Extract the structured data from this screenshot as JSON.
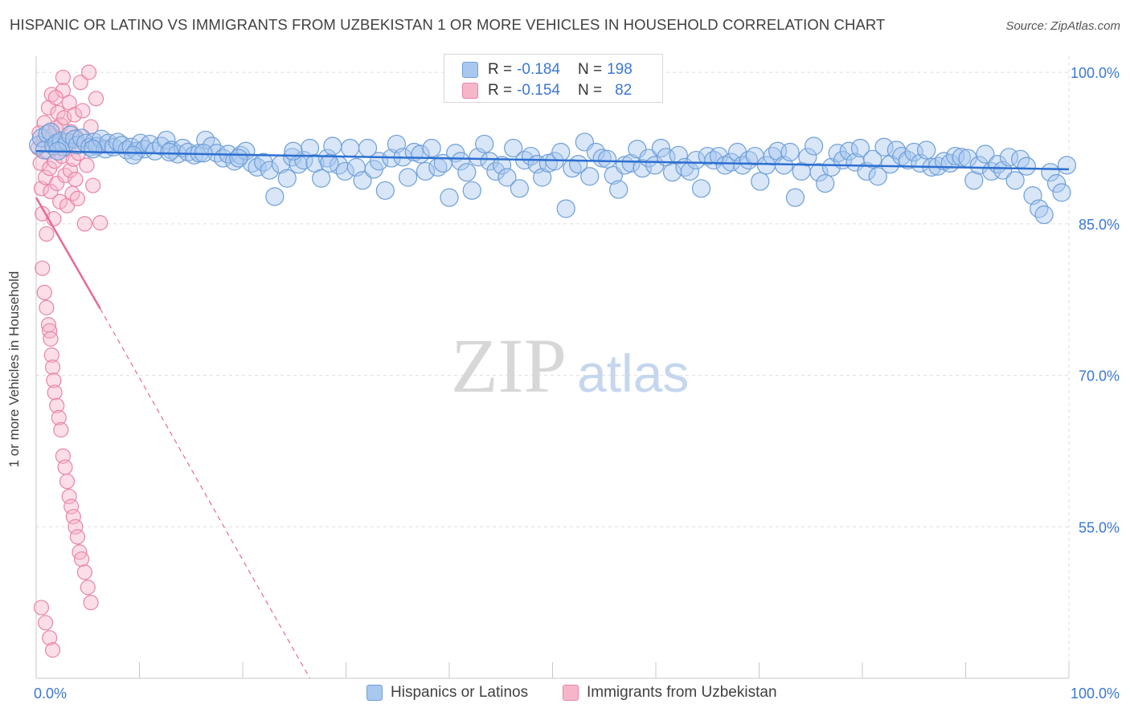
{
  "title": "HISPANIC OR LATINO VS IMMIGRANTS FROM UZBEKISTAN 1 OR MORE VEHICLES IN HOUSEHOLD CORRELATION CHART",
  "source": "Source: ZipAtlas.com",
  "watermark": {
    "zip": "ZIP",
    "atlas": "atlas"
  },
  "colors": {
    "blue_fill": "#a9c8f0",
    "blue_stroke": "#6e9fd8",
    "blue_line": "#2c6fd1",
    "pink_fill": "#f6b6ca",
    "pink_stroke": "#e984a6",
    "pink_line": "#e8689a",
    "axis_text": "#3a77d6",
    "grid": "#dedede"
  },
  "stats": {
    "blue": {
      "r_label": "R =",
      "r_value": "-0.184",
      "n_label": "N =",
      "n_value": "198"
    },
    "pink": {
      "r_label": "R =",
      "r_value": "-0.154",
      "n_label": "N =",
      "n_value": "82"
    }
  },
  "legend": {
    "blue_label": "Hispanics or Latinos",
    "pink_label": "Immigrants from Uzbekistan"
  },
  "chart_data": {
    "type": "scatter",
    "ylabel": "1 or more Vehicles in Household",
    "xlabel": "",
    "xlim": [
      0,
      100
    ],
    "ylim": [
      40,
      101.6
    ],
    "x_tick_labels": [
      {
        "value": 0,
        "label": "0.0%"
      },
      {
        "value": 100,
        "label": "100.0%"
      }
    ],
    "y_tick_labels": [
      {
        "value": 100,
        "label": "100.0%"
      },
      {
        "value": 85,
        "label": "85.0%"
      },
      {
        "value": 70,
        "label": "70.0%"
      },
      {
        "value": 55,
        "label": "55.0%"
      }
    ],
    "series": [
      {
        "name": "Hispanics or Latinos",
        "color": "blue",
        "trend": {
          "x": [
            0,
            100
          ],
          "y": [
            92.2,
            90.4
          ],
          "dashed_to": null
        },
        "points": [
          [
            0.2,
            92.8
          ],
          [
            0.5,
            93.5
          ],
          [
            0.8,
            92.3
          ],
          [
            1.1,
            93.9
          ],
          [
            1.4,
            94.1
          ],
          [
            1.7,
            92.7
          ],
          [
            2.0,
            93.0
          ],
          [
            2.4,
            93.2
          ],
          [
            2.7,
            92.6
          ],
          [
            3.0,
            93.1
          ],
          [
            3.3,
            93.8
          ],
          [
            3.7,
            93.4
          ],
          [
            4.0,
            92.8
          ],
          [
            4.4,
            93.5
          ],
          [
            4.8,
            93.0
          ],
          [
            5.2,
            92.6
          ],
          [
            5.6,
            93.1
          ],
          [
            5.9,
            92.7
          ],
          [
            6.3,
            93.4
          ],
          [
            6.7,
            92.4
          ],
          [
            7.0,
            93.0
          ],
          [
            7.5,
            92.6
          ],
          [
            7.9,
            93.1
          ],
          [
            8.3,
            92.8
          ],
          [
            8.8,
            92.3
          ],
          [
            9.2,
            92.6
          ],
          [
            9.7,
            92.2
          ],
          [
            10.1,
            93.0
          ],
          [
            10.5,
            92.4
          ],
          [
            11.0,
            92.9
          ],
          [
            11.5,
            92.2
          ],
          [
            12.1,
            92.7
          ],
          [
            12.6,
            93.3
          ],
          [
            13.1,
            92.3
          ],
          [
            13.7,
            91.9
          ],
          [
            14.2,
            92.5
          ],
          [
            14.7,
            92.1
          ],
          [
            15.3,
            91.8
          ],
          [
            15.8,
            92.0
          ],
          [
            16.4,
            93.3
          ],
          [
            17.0,
            92.7
          ],
          [
            17.5,
            92.0
          ],
          [
            18.1,
            91.5
          ],
          [
            18.6,
            91.9
          ],
          [
            19.2,
            91.2
          ],
          [
            19.8,
            91.8
          ],
          [
            20.3,
            92.2
          ],
          [
            20.9,
            91.0
          ],
          [
            21.4,
            90.6
          ],
          [
            22.0,
            91.1
          ],
          [
            22.6,
            90.3
          ],
          [
            23.1,
            87.7
          ],
          [
            23.7,
            90.9
          ],
          [
            24.3,
            89.5
          ],
          [
            24.8,
            91.6
          ],
          [
            25.4,
            90.9
          ],
          [
            25.9,
            91.3
          ],
          [
            26.5,
            92.5
          ],
          [
            27.0,
            91.0
          ],
          [
            27.6,
            89.5
          ],
          [
            28.2,
            91.5
          ],
          [
            28.7,
            92.7
          ],
          [
            29.3,
            90.8
          ],
          [
            29.9,
            90.2
          ],
          [
            30.4,
            92.5
          ],
          [
            31.0,
            90.6
          ],
          [
            31.6,
            89.3
          ],
          [
            32.1,
            92.5
          ],
          [
            32.7,
            90.4
          ],
          [
            33.2,
            91.2
          ],
          [
            33.8,
            88.3
          ],
          [
            34.4,
            91.5
          ],
          [
            34.9,
            92.9
          ],
          [
            35.5,
            91.6
          ],
          [
            36.0,
            89.6
          ],
          [
            36.6,
            92.1
          ],
          [
            37.2,
            91.9
          ],
          [
            37.7,
            90.2
          ],
          [
            38.3,
            92.5
          ],
          [
            38.9,
            90.6
          ],
          [
            39.4,
            91.0
          ],
          [
            40.0,
            87.6
          ],
          [
            40.6,
            92.0
          ],
          [
            41.1,
            91.2
          ],
          [
            41.7,
            90.1
          ],
          [
            42.2,
            88.3
          ],
          [
            42.8,
            91.6
          ],
          [
            43.4,
            92.9
          ],
          [
            43.9,
            91.2
          ],
          [
            44.5,
            90.2
          ],
          [
            45.1,
            90.8
          ],
          [
            45.6,
            89.6
          ],
          [
            46.2,
            92.5
          ],
          [
            46.8,
            88.5
          ],
          [
            47.3,
            91.3
          ],
          [
            47.9,
            91.7
          ],
          [
            48.5,
            90.9
          ],
          [
            49.0,
            89.6
          ],
          [
            49.6,
            91.0
          ],
          [
            50.2,
            91.2
          ],
          [
            50.8,
            92.1
          ],
          [
            51.3,
            86.5
          ],
          [
            51.9,
            90.5
          ],
          [
            52.5,
            90.9
          ],
          [
            53.1,
            93.1
          ],
          [
            53.6,
            89.7
          ],
          [
            54.2,
            92.1
          ],
          [
            54.8,
            91.5
          ],
          [
            55.3,
            91.4
          ],
          [
            55.9,
            89.8
          ],
          [
            56.4,
            88.4
          ],
          [
            57.0,
            90.8
          ],
          [
            57.6,
            91.0
          ],
          [
            58.2,
            92.4
          ],
          [
            58.7,
            90.5
          ],
          [
            59.3,
            91.5
          ],
          [
            59.9,
            90.8
          ],
          [
            60.5,
            92.5
          ],
          [
            61.0,
            91.6
          ],
          [
            61.6,
            90.1
          ],
          [
            62.2,
            91.8
          ],
          [
            62.8,
            90.6
          ],
          [
            63.3,
            90.2
          ],
          [
            63.9,
            91.3
          ],
          [
            64.4,
            88.5
          ],
          [
            65.0,
            91.7
          ],
          [
            65.6,
            91.3
          ],
          [
            66.1,
            91.7
          ],
          [
            66.7,
            90.8
          ],
          [
            67.3,
            91.1
          ],
          [
            67.9,
            92.1
          ],
          [
            68.4,
            90.8
          ],
          [
            69.0,
            91.3
          ],
          [
            69.6,
            91.7
          ],
          [
            70.1,
            89.2
          ],
          [
            70.7,
            90.8
          ],
          [
            71.3,
            91.7
          ],
          [
            71.8,
            92.2
          ],
          [
            72.4,
            90.8
          ],
          [
            73.0,
            92.1
          ],
          [
            73.5,
            87.6
          ],
          [
            74.1,
            90.2
          ],
          [
            74.7,
            91.6
          ],
          [
            75.3,
            92.7
          ],
          [
            75.8,
            90.1
          ],
          [
            76.4,
            89.0
          ],
          [
            77.0,
            90.6
          ],
          [
            77.6,
            92.0
          ],
          [
            78.1,
            91.3
          ],
          [
            78.7,
            92.2
          ],
          [
            79.3,
            91.1
          ],
          [
            79.8,
            92.5
          ],
          [
            80.4,
            90.2
          ],
          [
            81.0,
            91.4
          ],
          [
            81.5,
            89.7
          ],
          [
            82.1,
            92.6
          ],
          [
            82.7,
            90.9
          ],
          [
            83.3,
            92.3
          ],
          [
            83.8,
            91.7
          ],
          [
            84.4,
            91.3
          ],
          [
            85.0,
            92.1
          ],
          [
            85.6,
            91.0
          ],
          [
            86.2,
            92.3
          ],
          [
            86.7,
            90.6
          ],
          [
            87.3,
            90.7
          ],
          [
            87.9,
            91.2
          ],
          [
            88.5,
            91.0
          ],
          [
            89.0,
            91.7
          ],
          [
            89.6,
            91.6
          ],
          [
            90.2,
            91.5
          ],
          [
            90.8,
            89.3
          ],
          [
            91.3,
            90.8
          ],
          [
            91.9,
            91.9
          ],
          [
            92.5,
            90.2
          ],
          [
            93.1,
            90.9
          ],
          [
            93.6,
            90.3
          ],
          [
            94.2,
            91.6
          ],
          [
            94.8,
            89.3
          ],
          [
            95.3,
            91.4
          ],
          [
            95.9,
            90.7
          ],
          [
            96.5,
            87.8
          ],
          [
            97.1,
            86.5
          ],
          [
            97.6,
            85.9
          ],
          [
            98.2,
            90.1
          ],
          [
            98.8,
            89.0
          ],
          [
            99.3,
            88.1
          ],
          [
            99.8,
            90.8
          ],
          [
            2.1,
            92.2
          ],
          [
            5.5,
            92.4
          ],
          [
            9.4,
            91.8
          ],
          [
            12.9,
            92.1
          ],
          [
            16.2,
            92.0
          ],
          [
            19.6,
            91.5
          ],
          [
            24.9,
            92.2
          ],
          [
            28.4,
            91.0
          ]
        ]
      },
      {
        "name": "Immigrants from Uzbekistan",
        "color": "pink",
        "trend": {
          "x": [
            0,
            6.2
          ],
          "y": [
            87.6,
            76.6
          ],
          "dashed_to": [
            26.5,
            40.0
          ]
        },
        "points": [
          [
            0.2,
            92.5
          ],
          [
            0.3,
            94.0
          ],
          [
            0.4,
            91.0
          ],
          [
            0.5,
            88.5
          ],
          [
            0.6,
            86.0
          ],
          [
            0.7,
            93.3
          ],
          [
            0.8,
            95.0
          ],
          [
            0.9,
            89.6
          ],
          [
            1.0,
            84.0
          ],
          [
            1.1,
            92.1
          ],
          [
            1.2,
            96.5
          ],
          [
            1.3,
            90.5
          ],
          [
            1.4,
            88.2
          ],
          [
            1.5,
            97.8
          ],
          [
            1.6,
            93.7
          ],
          [
            1.7,
            85.5
          ],
          [
            1.8,
            91.2
          ],
          [
            1.9,
            94.5
          ],
          [
            2.0,
            89.0
          ],
          [
            2.1,
            96.0
          ],
          [
            2.2,
            92.8
          ],
          [
            2.3,
            87.2
          ],
          [
            2.4,
            94.8
          ],
          [
            2.5,
            91.7
          ],
          [
            2.6,
            98.2
          ],
          [
            2.7,
            95.5
          ],
          [
            2.8,
            89.8
          ],
          [
            2.9,
            93.2
          ],
          [
            3.0,
            86.8
          ],
          [
            3.1,
            92.4
          ],
          [
            3.2,
            97.0
          ],
          [
            3.3,
            90.3
          ],
          [
            3.4,
            94.1
          ],
          [
            3.5,
            88.0
          ],
          [
            3.6,
            91.4
          ],
          [
            3.7,
            95.8
          ],
          [
            3.8,
            89.4
          ],
          [
            3.9,
            93.6
          ],
          [
            4.0,
            87.5
          ],
          [
            4.1,
            92.0
          ],
          [
            4.3,
            99.0
          ],
          [
            4.5,
            96.2
          ],
          [
            4.7,
            85.0
          ],
          [
            4.9,
            90.8
          ],
          [
            5.1,
            100.0
          ],
          [
            5.3,
            94.6
          ],
          [
            5.5,
            88.8
          ],
          [
            5.8,
            97.4
          ],
          [
            6.0,
            92.7
          ],
          [
            6.2,
            85.1
          ],
          [
            0.6,
            80.6
          ],
          [
            0.8,
            78.2
          ],
          [
            1.0,
            76.7
          ],
          [
            1.2,
            75.0
          ],
          [
            1.3,
            74.4
          ],
          [
            1.4,
            73.6
          ],
          [
            1.5,
            72.0
          ],
          [
            1.6,
            70.8
          ],
          [
            1.7,
            69.5
          ],
          [
            1.8,
            68.3
          ],
          [
            2.0,
            67.0
          ],
          [
            2.2,
            65.8
          ],
          [
            2.4,
            64.6
          ],
          [
            2.6,
            62.0
          ],
          [
            2.8,
            60.9
          ],
          [
            3.0,
            59.5
          ],
          [
            3.2,
            58.0
          ],
          [
            3.4,
            57.0
          ],
          [
            3.6,
            56.0
          ],
          [
            3.8,
            55.0
          ],
          [
            4.0,
            54.0
          ],
          [
            4.2,
            52.5
          ],
          [
            4.4,
            51.8
          ],
          [
            4.7,
            50.5
          ],
          [
            5.0,
            49.0
          ],
          [
            5.3,
            47.5
          ],
          [
            0.5,
            47.0
          ],
          [
            0.9,
            45.5
          ],
          [
            1.3,
            44.0
          ],
          [
            1.6,
            42.8
          ],
          [
            1.9,
            97.5
          ],
          [
            2.6,
            99.5
          ]
        ]
      }
    ]
  }
}
